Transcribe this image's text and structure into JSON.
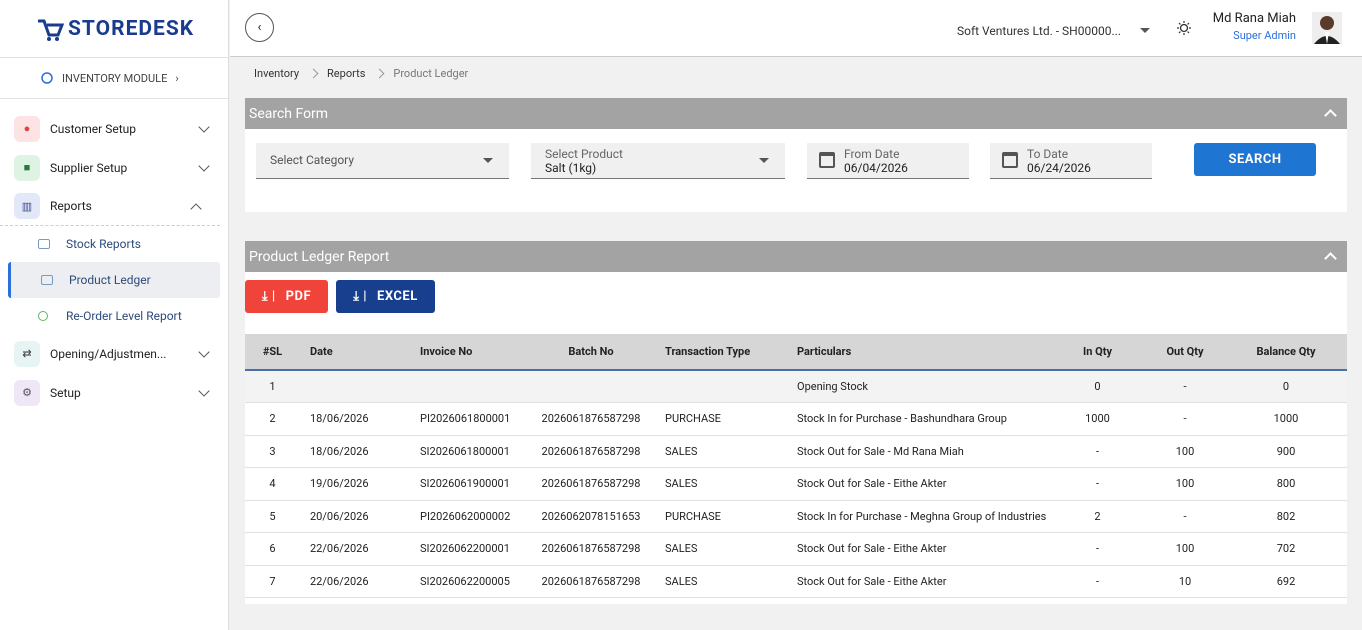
{
  "brand": "STOREDESK",
  "module": "INVENTORY MODULE",
  "nav": {
    "items": [
      "Customer Setup",
      "Supplier Setup",
      "Reports",
      "Opening/Adjustmen...",
      "Setup"
    ],
    "reports_children": [
      "Stock Reports",
      "Product Ledger",
      "Re-Order Level Report"
    ]
  },
  "header": {
    "company": "Soft Ventures Ltd. - SH00000...",
    "user_name": "Md Rana Miah",
    "user_role": "Super Admin"
  },
  "breadcrumb": [
    "Inventory",
    "Reports",
    "Product Ledger"
  ],
  "search_form": {
    "title": "Search Form",
    "category_placeholder": "Select Category",
    "product_label": "Select Product",
    "product_value": "Salt (1kg)",
    "from_label": "From Date",
    "from_value": "06/04/2026",
    "to_label": "To Date",
    "to_value": "06/24/2026",
    "button": "SEARCH"
  },
  "report": {
    "title": "Product Ledger Report",
    "pdf_button": "PDF",
    "excel_button": "EXCEL",
    "table": {
      "columns": [
        "#SL",
        "Date",
        "Invoice No",
        "Batch No",
        "Transaction Type",
        "Particulars",
        "In Qty",
        "Out Qty",
        "Balance Qty"
      ],
      "rows": [
        [
          "1",
          null,
          null,
          null,
          null,
          "Opening Stock",
          "0",
          "-",
          "0"
        ],
        [
          "2",
          "18/06/2026",
          "PI2026061800001",
          "2026061876587298",
          "PURCHASE",
          "Stock In for Purchase - Bashundhara Group",
          "1000",
          "-",
          "1000"
        ],
        [
          "3",
          "18/06/2026",
          "SI2026061800001",
          "2026061876587298",
          "SALES",
          "Stock Out for Sale - Md Rana Miah",
          "-",
          "100",
          "900"
        ],
        [
          "4",
          "19/06/2026",
          "SI2026061900001",
          "2026061876587298",
          "SALES",
          "Stock Out for Sale - Eithe Akter",
          "-",
          "100",
          "800"
        ],
        [
          "5",
          "20/06/2026",
          "PI2026062000002",
          "2026062078151653",
          "PURCHASE",
          "Stock In for Purchase - Meghna Group of Industries",
          "2",
          "-",
          "802"
        ],
        [
          "6",
          "22/06/2026",
          "SI2026062200001",
          "2026061876587298",
          "SALES",
          "Stock Out for Sale - Eithe Akter",
          "-",
          "100",
          "702"
        ],
        [
          "7",
          "22/06/2026",
          "SI2026062200005",
          "2026061876587298",
          "SALES",
          "Stock Out for Sale - Eithe Akter",
          "-",
          "10",
          "692"
        ]
      ]
    }
  }
}
